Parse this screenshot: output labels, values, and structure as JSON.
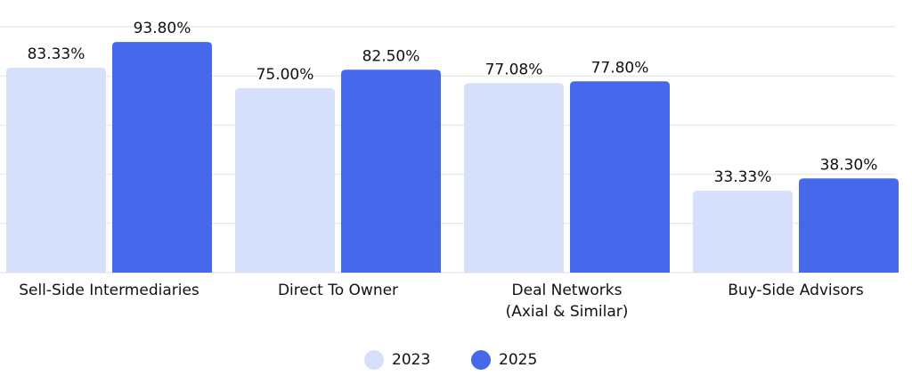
{
  "chart_data": {
    "type": "bar",
    "categories": [
      "Sell-Side Intermediaries",
      "Direct To Owner",
      "Deal Networks\n(Axial & Similar)",
      "Buy-Side Advisors"
    ],
    "series": [
      {
        "name": "2023",
        "color": "#d7e0fa",
        "values": [
          83.33,
          75.0,
          77.08,
          33.33
        ],
        "value_labels": [
          "83.33%",
          "75.00%",
          "77.08%",
          "33.33%"
        ]
      },
      {
        "name": "2025",
        "color": "#4569ea",
        "values": [
          93.8,
          82.5,
          77.8,
          38.3
        ],
        "value_labels": [
          "93.80%",
          "82.50%",
          "77.80%",
          "38.30%"
        ]
      }
    ],
    "ylim": [
      0,
      100
    ],
    "yticks": [
      0,
      20,
      40,
      60,
      80,
      100
    ],
    "grid": true,
    "legend": "bottom"
  }
}
